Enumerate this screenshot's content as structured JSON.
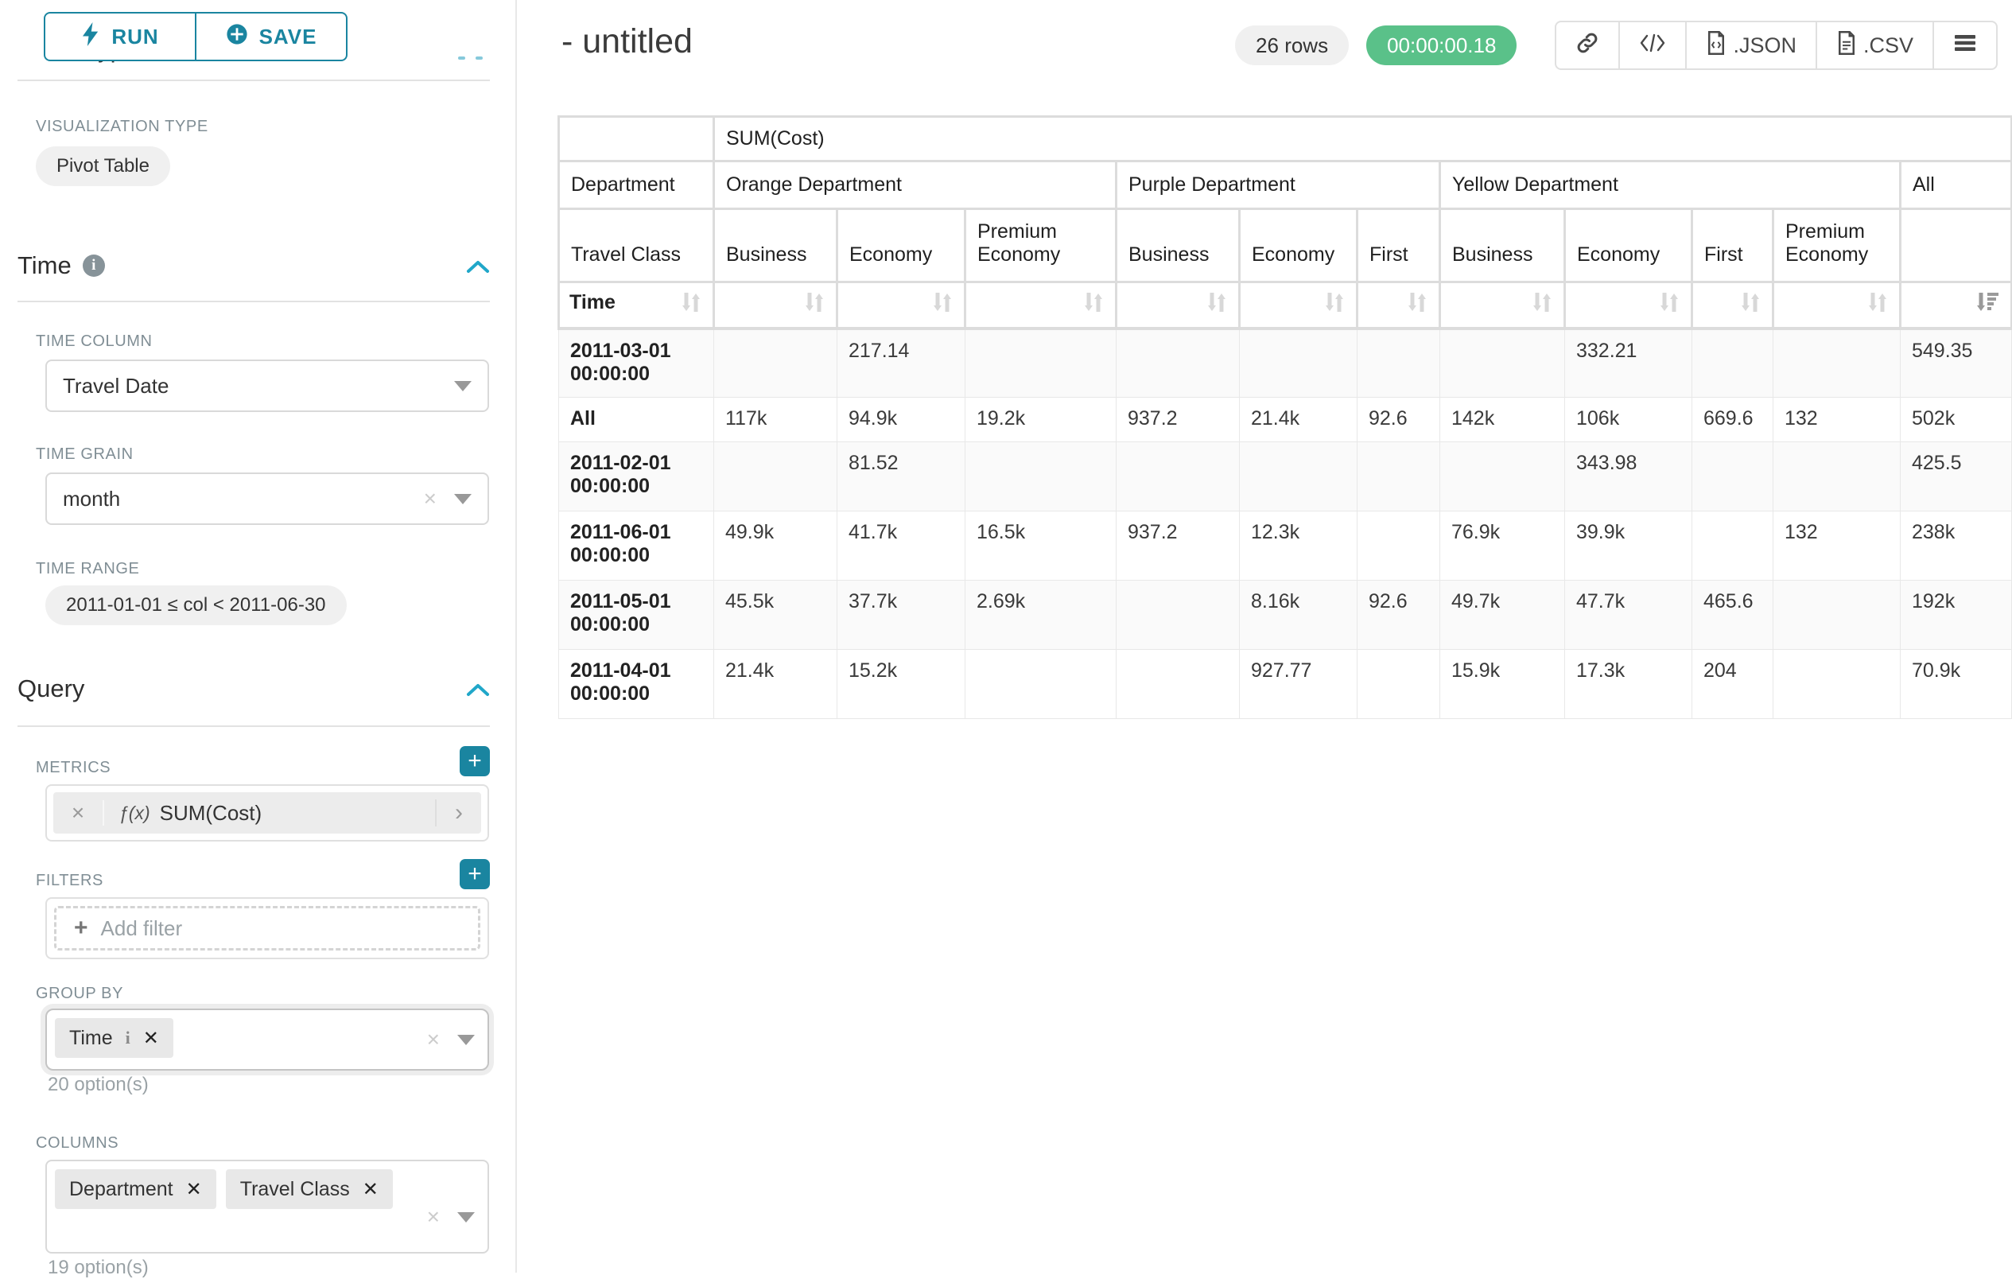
{
  "colors": {
    "accent": "#1a85a0",
    "chevron": "#20a7c9",
    "success": "#5ac189"
  },
  "sidebar": {
    "run_label": "RUN",
    "save_label": "SAVE",
    "chart_type_heading": "Chart Type",
    "viz_type_label": "VISUALIZATION TYPE",
    "viz_type_value": "Pivot Table",
    "time_heading": "Time",
    "time_column_label": "TIME COLUMN",
    "time_column_value": "Travel Date",
    "time_grain_label": "TIME GRAIN",
    "time_grain_value": "month",
    "time_range_label": "TIME RANGE",
    "time_range_value": "2011-01-01 ≤ col < 2011-06-30",
    "query_heading": "Query",
    "metrics_label": "METRICS",
    "metric_fx": "ƒ(x)",
    "metric_name": "SUM(Cost)",
    "filters_label": "FILTERS",
    "add_filter_label": "Add filter",
    "group_by_label": "GROUP BY",
    "group_by_chip": "Time",
    "group_by_helper": "20 option(s)",
    "columns_label": "COLUMNS",
    "columns_chips": [
      "Department",
      "Travel Class"
    ],
    "columns_helper": "19 option(s)"
  },
  "header": {
    "title": "- untitled",
    "rows_badge": "26 rows",
    "timer": "00:00:00.18",
    "json_label": ".JSON",
    "csv_label": ".CSV"
  },
  "pivot": {
    "type": "table",
    "metric_header": "SUM(Cost)",
    "corner_row2": "Department",
    "corner_row3": "Travel Class",
    "row_dim": "Time",
    "groups": [
      {
        "label": "Orange Department",
        "cols": [
          "Business",
          "Economy",
          "Premium Economy"
        ]
      },
      {
        "label": "Purple Department",
        "cols": [
          "Business",
          "Economy",
          "First"
        ]
      },
      {
        "label": "Yellow Department",
        "cols": [
          "Business",
          "Economy",
          "First",
          "Premium Economy"
        ]
      },
      {
        "label": "All",
        "cols": [
          ""
        ]
      }
    ],
    "rows": [
      {
        "label": "2011-03-01 00:00:00",
        "values": [
          "",
          "217.14",
          "",
          "",
          "",
          "",
          "",
          "332.21",
          "",
          "",
          "549.35"
        ]
      },
      {
        "label": "All",
        "values": [
          "117k",
          "94.9k",
          "19.2k",
          "937.2",
          "21.4k",
          "92.6",
          "142k",
          "106k",
          "669.6",
          "132",
          "502k"
        ]
      },
      {
        "label": "2011-02-01 00:00:00",
        "values": [
          "",
          "81.52",
          "",
          "",
          "",
          "",
          "",
          "343.98",
          "",
          "",
          "425.5"
        ]
      },
      {
        "label": "2011-06-01 00:00:00",
        "values": [
          "49.9k",
          "41.7k",
          "16.5k",
          "937.2",
          "12.3k",
          "",
          "76.9k",
          "39.9k",
          "",
          "132",
          "238k"
        ]
      },
      {
        "label": "2011-05-01 00:00:00",
        "values": [
          "45.5k",
          "37.7k",
          "2.69k",
          "",
          "8.16k",
          "92.6",
          "49.7k",
          "47.7k",
          "465.6",
          "",
          "192k"
        ]
      },
      {
        "label": "2011-04-01 00:00:00",
        "values": [
          "21.4k",
          "15.2k",
          "",
          "",
          "927.77",
          "",
          "15.9k",
          "17.3k",
          "204",
          "",
          "70.9k"
        ]
      }
    ]
  }
}
